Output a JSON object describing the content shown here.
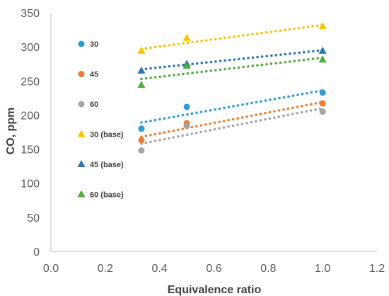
{
  "chart_data": {
    "type": "scatter",
    "title": "",
    "xlabel": "Equivalence ratio",
    "ylabel": "CO, ppm",
    "xlim": [
      0.0,
      1.2
    ],
    "ylim": [
      0,
      350
    ],
    "x_ticks": [
      "0.0",
      "0.2",
      "0.4",
      "0.6",
      "0.8",
      "1.0",
      "1.2"
    ],
    "y_ticks": [
      "0",
      "50",
      "100",
      "150",
      "200",
      "250",
      "300",
      "350"
    ],
    "grid": false,
    "legend_position": "left inside plot",
    "trendlines": "dotted, fitted per series",
    "series": [
      {
        "name": "30",
        "marker": "circle",
        "color": "#2E9BD6",
        "x": [
          0.333,
          0.5,
          1.0
        ],
        "y": [
          180,
          212,
          233
        ],
        "trend": [
          189,
          236
        ]
      },
      {
        "name": "45",
        "marker": "circle",
        "color": "#ED7D31",
        "x": [
          0.333,
          0.5,
          1.0
        ],
        "y": [
          163,
          188,
          217
        ],
        "trend": [
          168,
          219
        ]
      },
      {
        "name": "60",
        "marker": "circle",
        "color": "#A5A5A5",
        "x": [
          0.333,
          0.5,
          1.0
        ],
        "y": [
          148,
          184,
          205
        ],
        "trend": [
          158,
          210
        ]
      },
      {
        "name": "30 (base)",
        "marker": "triangle",
        "color": "#FFC000",
        "x": [
          0.333,
          0.5,
          1.0
        ],
        "y": [
          294,
          313,
          330
        ],
        "trend": [
          297,
          332
        ]
      },
      {
        "name": "45 (base)",
        "marker": "triangle",
        "color": "#2E75B6",
        "x": [
          0.333,
          0.5,
          1.0
        ],
        "y": [
          265,
          275,
          294
        ],
        "trend": [
          267,
          295
        ]
      },
      {
        "name": "60 (base)",
        "marker": "triangle",
        "color": "#4EAD3B",
        "x": [
          0.333,
          0.5,
          1.0
        ],
        "y": [
          244,
          272,
          281
        ],
        "trend": [
          253,
          284
        ]
      }
    ]
  }
}
